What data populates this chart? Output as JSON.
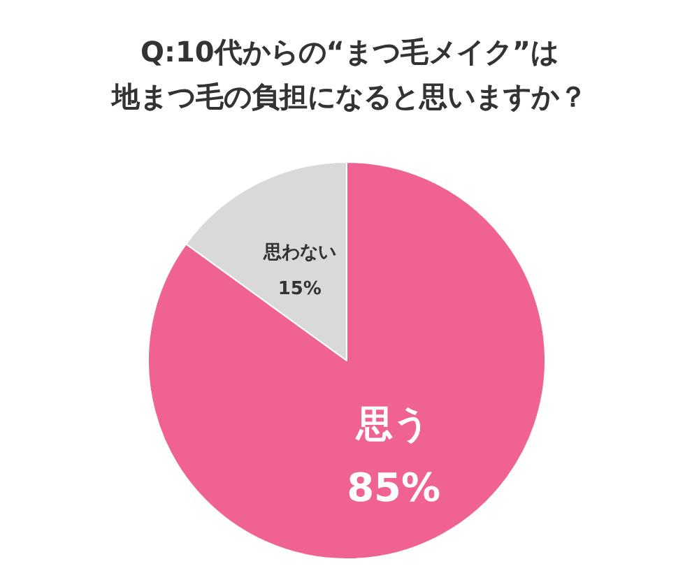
{
  "chart_data": {
    "type": "pie",
    "title": "Q:10代からの“まつ毛メイク”は地まつ毛の負担になると思いますか？",
    "categories": [
      "思う",
      "思わない"
    ],
    "values": [
      85,
      15
    ],
    "colors": [
      "#f06292",
      "#d9d9d9"
    ],
    "value_labels": [
      "85%",
      "15%"
    ],
    "legend": false
  }
}
